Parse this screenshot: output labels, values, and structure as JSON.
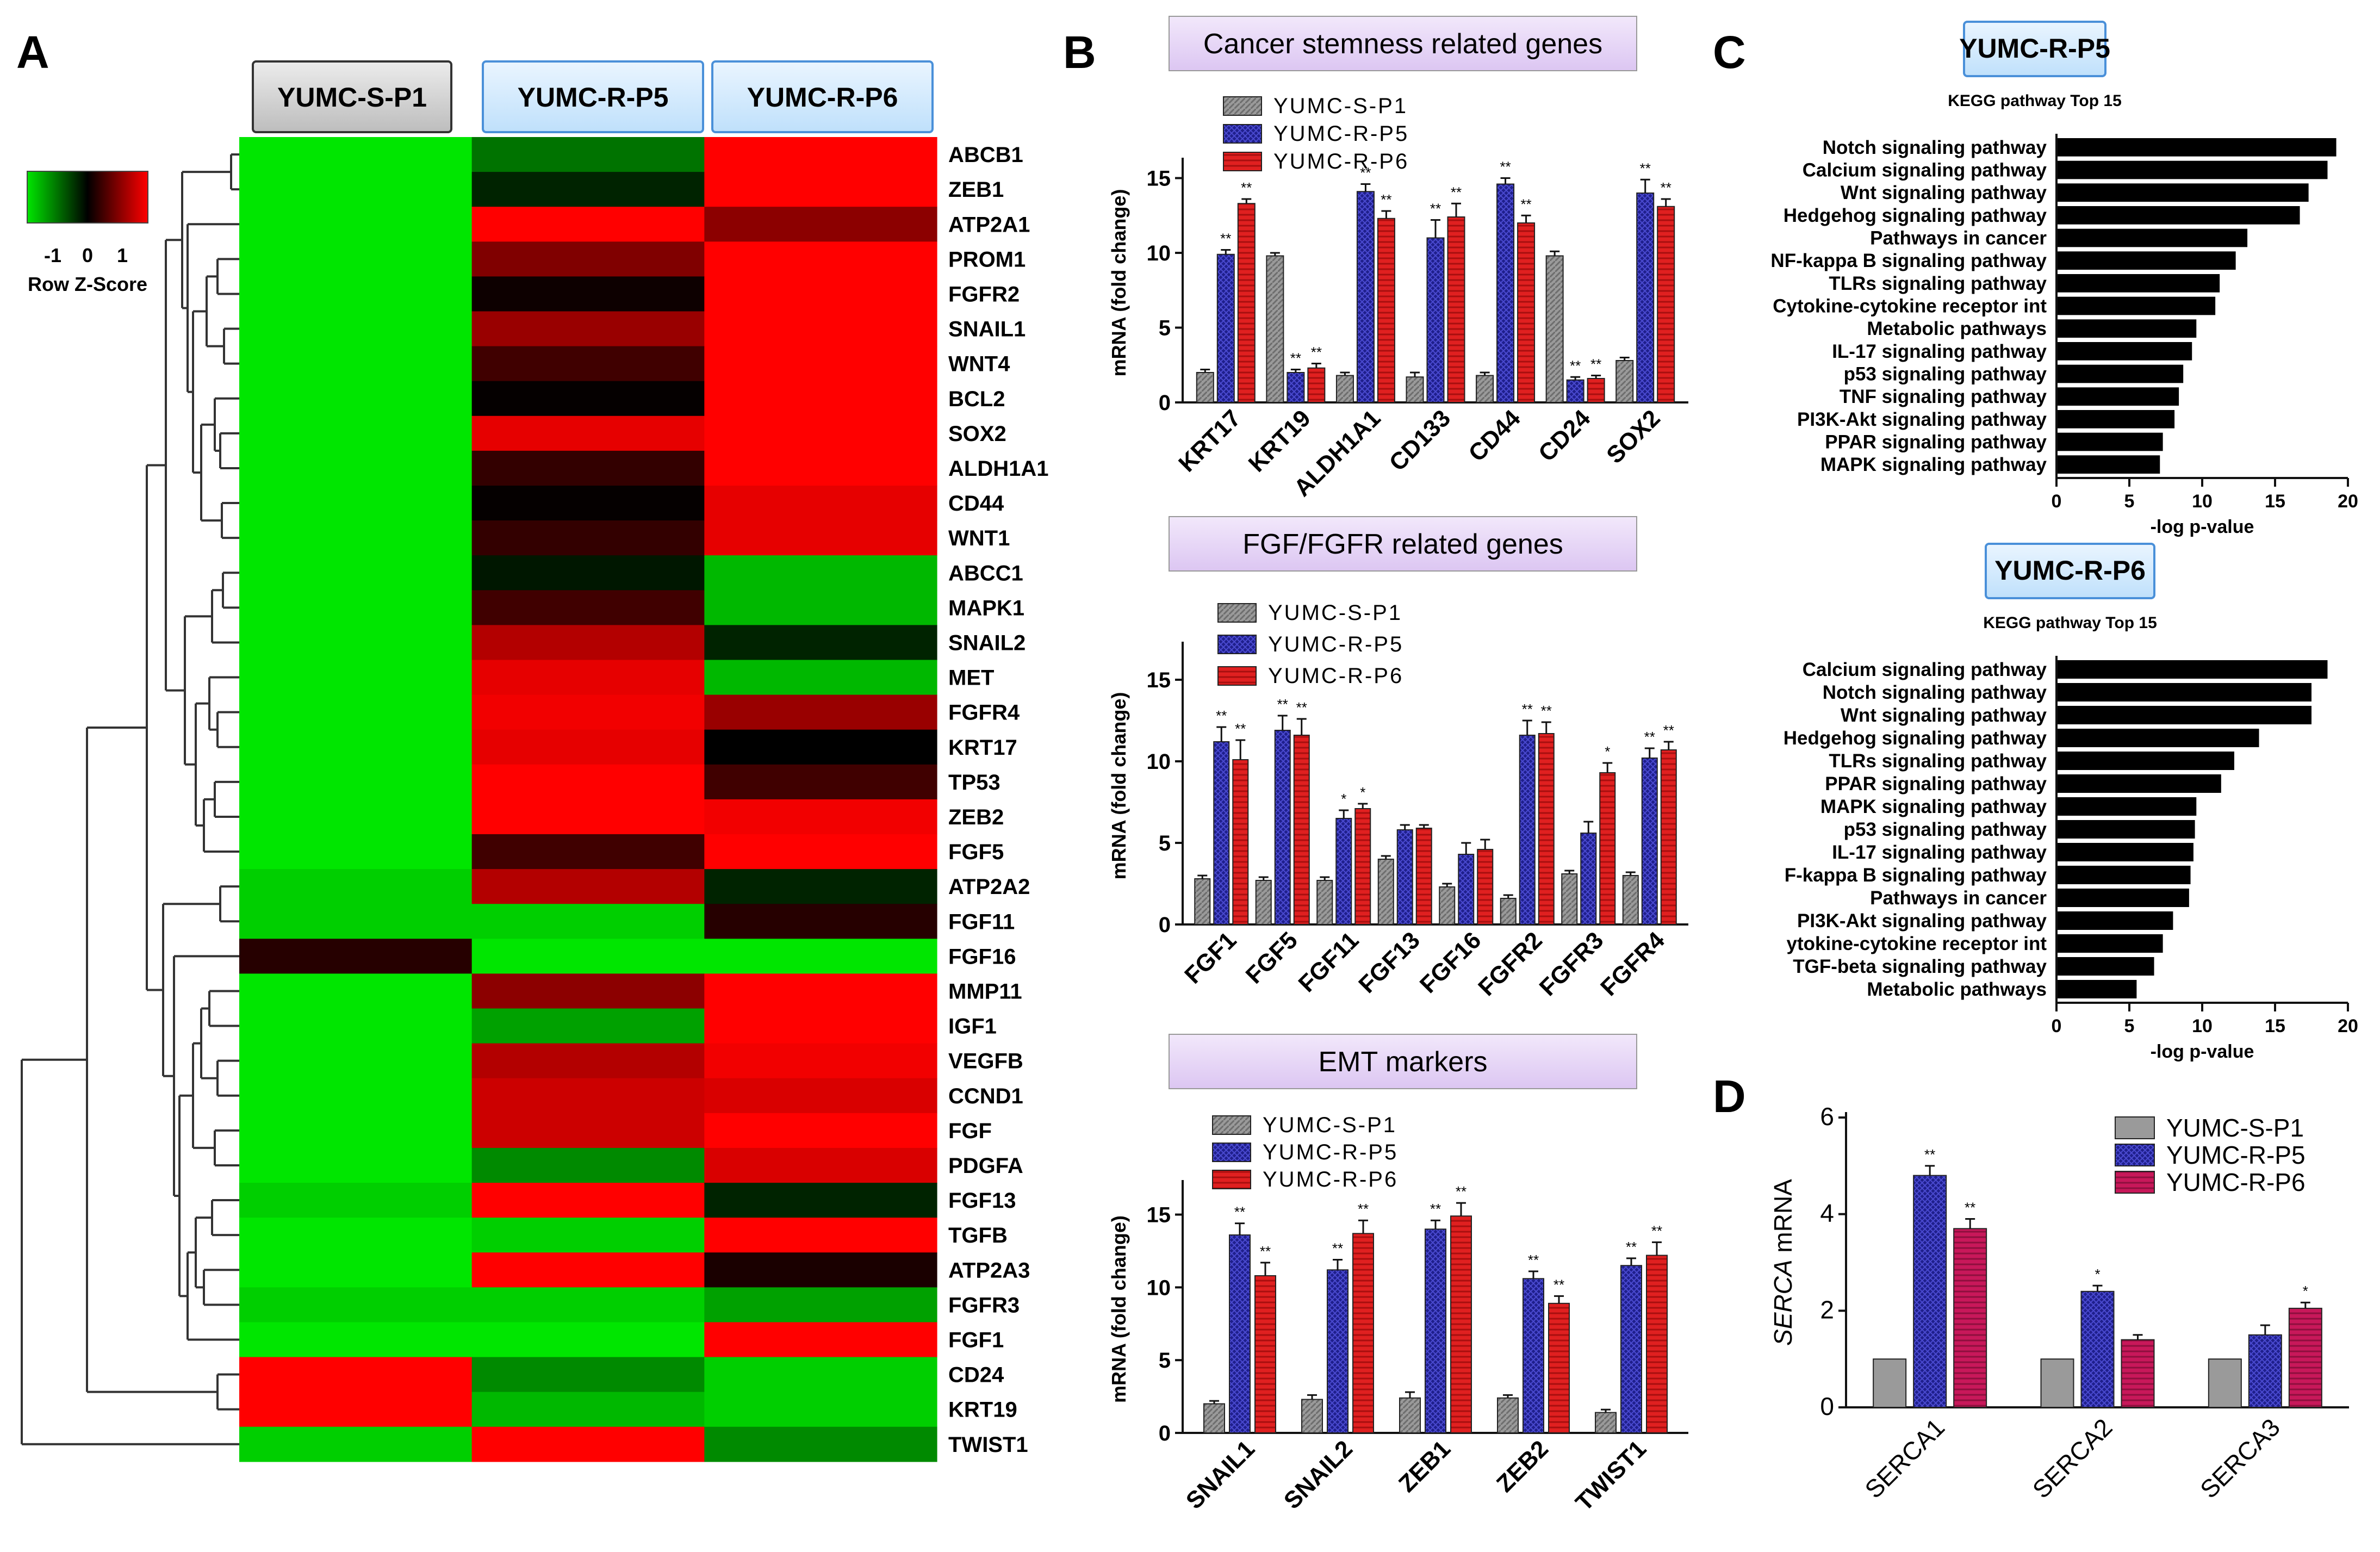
{
  "panel_labels": {
    "A": "A",
    "B": "B",
    "C": "C",
    "D": "D"
  },
  "colors": {
    "s_p1": "#9a9a9a",
    "r_p5": "#1f1f8c",
    "r_p6": "#e02020",
    "r_p6_d": "#c8185a"
  },
  "chart_data": [
    {
      "id": "heatmap",
      "type": "heatmap",
      "columns": [
        "YUMC-S-P1",
        "YUMC-R-P5",
        "YUMC-R-P6"
      ],
      "color_key": {
        "title": "Row Z-Score",
        "ticks": [
          "-1",
          "0",
          "1"
        ]
      },
      "genes": [
        "ABCB1",
        "ZEB1",
        "ATP2A1",
        "PROM1",
        "FGFR2",
        "SNAIL1",
        "WNT4",
        "BCL2",
        "SOX2",
        "ALDH1A1",
        "CD44",
        "WNT1",
        "ABCC1",
        "MAPK1",
        "SNAIL2",
        "MET",
        "FGFR4",
        "KRT17",
        "TP53",
        "ZEB2",
        "FGF5",
        "ATP2A2",
        "FGF11",
        "FGF16",
        "MMP11",
        "IGF1",
        "VEGFB",
        "CCND1",
        "FGF",
        "PDGFA",
        "FGF13",
        "TGFB",
        "ATP2A3",
        "FGFR3",
        "FGF1",
        "CD24",
        "KRT19",
        "TWIST1"
      ],
      "z_scores": [
        [
          -1.0,
          -0.5,
          1.0
        ],
        [
          -1.0,
          -0.15,
          1.0
        ],
        [
          -1.0,
          1.0,
          0.55
        ],
        [
          -1.0,
          0.5,
          1.0
        ],
        [
          -1.0,
          0.05,
          1.0
        ],
        [
          -1.0,
          0.6,
          1.0
        ],
        [
          -1.0,
          0.25,
          1.0
        ],
        [
          -1.0,
          0.02,
          1.0
        ],
        [
          -1.0,
          0.9,
          1.0
        ],
        [
          -1.0,
          0.2,
          1.0
        ],
        [
          -1.0,
          0.02,
          0.9
        ],
        [
          -1.0,
          0.2,
          0.9
        ],
        [
          -1.0,
          -0.1,
          -0.8
        ],
        [
          -1.0,
          0.25,
          -0.8
        ],
        [
          -1.0,
          0.7,
          -0.15
        ],
        [
          -1.0,
          0.9,
          -0.8
        ],
        [
          -1.0,
          0.95,
          0.6
        ],
        [
          -1.0,
          0.9,
          0.0
        ],
        [
          -1.0,
          1.0,
          0.25
        ],
        [
          -1.0,
          1.0,
          0.95
        ],
        [
          -1.0,
          0.25,
          1.0
        ],
        [
          -0.9,
          0.7,
          -0.15
        ],
        [
          -0.9,
          -0.9,
          0.15
        ],
        [
          0.15,
          -1.0,
          -1.0
        ],
        [
          -1.0,
          0.55,
          1.0
        ],
        [
          -1.0,
          -0.7,
          1.0
        ],
        [
          -1.0,
          0.7,
          0.95
        ],
        [
          -1.0,
          0.8,
          0.85
        ],
        [
          -1.0,
          0.8,
          1.0
        ],
        [
          -1.0,
          -0.6,
          0.85
        ],
        [
          -0.9,
          1.0,
          -0.15
        ],
        [
          -1.0,
          -0.9,
          1.0
        ],
        [
          -1.0,
          1.0,
          0.1
        ],
        [
          -0.9,
          -0.9,
          -0.7
        ],
        [
          -1.0,
          -1.0,
          1.0
        ],
        [
          1.0,
          -0.6,
          -0.9
        ],
        [
          1.0,
          -0.8,
          -0.9
        ],
        [
          -0.9,
          1.0,
          -0.6
        ]
      ]
    },
    {
      "id": "stemness",
      "type": "bar",
      "title": "Cancer stemness related genes",
      "ylabel": "mRNA (fold change)",
      "ylim": [
        0,
        16
      ],
      "yticks": [
        "0",
        "5",
        "10",
        "15"
      ],
      "categories": [
        "KRT17",
        "KRT19",
        "ALDH1A1",
        "CD133",
        "CD44",
        "CD24",
        "SOX2"
      ],
      "series": [
        {
          "name": "YUMC-S-P1",
          "values": [
            2.0,
            9.8,
            1.8,
            1.7,
            1.8,
            9.8,
            2.8
          ],
          "err": [
            0.2,
            0.2,
            0.2,
            0.3,
            0.2,
            0.3,
            0.2
          ],
          "sig": [
            "",
            "",
            "",
            "",
            "",
            "",
            ""
          ]
        },
        {
          "name": "YUMC-R-P5",
          "values": [
            9.9,
            2.0,
            14.1,
            11.0,
            14.6,
            1.5,
            14.0
          ],
          "err": [
            0.3,
            0.2,
            0.5,
            1.2,
            0.4,
            0.2,
            0.9
          ],
          "sig": [
            "**",
            "**",
            "**",
            "**",
            "**",
            "**",
            "**"
          ]
        },
        {
          "name": "YUMC-R-P6",
          "values": [
            13.3,
            2.3,
            12.3,
            12.4,
            12.0,
            1.6,
            13.1
          ],
          "err": [
            0.3,
            0.3,
            0.5,
            0.9,
            0.5,
            0.2,
            0.5
          ],
          "sig": [
            "**",
            "**",
            "**",
            "**",
            "**",
            "**",
            "**"
          ]
        }
      ]
    },
    {
      "id": "fgf",
      "type": "bar",
      "title": "FGF/FGFR related genes",
      "ylabel": "mRNA (fold change)",
      "ylim": [
        0,
        17
      ],
      "yticks": [
        "0",
        "5",
        "10",
        "15"
      ],
      "categories": [
        "FGF1",
        "FGF5",
        "FGF11",
        "FGF13",
        "FGF16",
        "FGFR2",
        "FGFR3",
        "FGFR4"
      ],
      "series": [
        {
          "name": "YUMC-S-P1",
          "values": [
            2.8,
            2.7,
            2.7,
            4.0,
            2.3,
            1.6,
            3.1,
            3.0
          ],
          "err": [
            0.2,
            0.2,
            0.2,
            0.2,
            0.2,
            0.2,
            0.2,
            0.2
          ],
          "sig": [
            "",
            "",
            "",
            "",
            "",
            "",
            "",
            ""
          ]
        },
        {
          "name": "YUMC-R-P5",
          "values": [
            11.2,
            11.9,
            6.5,
            5.8,
            4.3,
            11.6,
            5.6,
            10.2
          ],
          "err": [
            0.9,
            0.9,
            0.5,
            0.3,
            0.7,
            0.9,
            0.7,
            0.6
          ],
          "sig": [
            "**",
            "**",
            "*",
            "",
            "",
            "**",
            "",
            "**"
          ]
        },
        {
          "name": "YUMC-R-P6",
          "values": [
            10.1,
            11.6,
            7.1,
            5.9,
            4.6,
            11.7,
            9.3,
            10.7
          ],
          "err": [
            1.2,
            1.0,
            0.3,
            0.2,
            0.6,
            0.7,
            0.6,
            0.5
          ],
          "sig": [
            "**",
            "**",
            "*",
            "",
            "",
            "**",
            "*",
            "**"
          ]
        }
      ]
    },
    {
      "id": "emt",
      "type": "bar",
      "title": "EMT markers",
      "ylabel": "mRNA (fold change)",
      "ylim": [
        0,
        17
      ],
      "yticks": [
        "0",
        "5",
        "10",
        "15"
      ],
      "categories": [
        "SNAIL1",
        "SNAIL2",
        "ZEB1",
        "ZEB2",
        "TWIST1"
      ],
      "series": [
        {
          "name": "YUMC-S-P1",
          "values": [
            2.0,
            2.3,
            2.4,
            2.4,
            1.4
          ],
          "err": [
            0.2,
            0.3,
            0.4,
            0.2,
            0.2
          ],
          "sig": [
            "",
            "",
            "",
            "",
            ""
          ]
        },
        {
          "name": "YUMC-R-P5",
          "values": [
            13.6,
            11.2,
            14.0,
            10.6,
            11.5
          ],
          "err": [
            0.8,
            0.7,
            0.6,
            0.5,
            0.5
          ],
          "sig": [
            "**",
            "**",
            "**",
            "**",
            "**"
          ]
        },
        {
          "name": "YUMC-R-P6",
          "values": [
            10.8,
            13.7,
            14.9,
            8.9,
            12.2
          ],
          "err": [
            0.9,
            0.9,
            0.9,
            0.5,
            0.9
          ],
          "sig": [
            "**",
            "**",
            "**",
            "**",
            "**"
          ]
        }
      ]
    },
    {
      "id": "kegg_p5",
      "type": "bar",
      "orientation": "horizontal",
      "badge": "YUMC-R-P5",
      "title": "KEGG pathway Top 15",
      "xlabel": "-log p-value",
      "xlim": [
        0,
        20
      ],
      "xticks": [
        "0",
        "5",
        "10",
        "15",
        "20"
      ],
      "categories": [
        "Notch signaling pathway",
        "Calcium signaling pathway",
        "Wnt signaling pathway",
        "Hedgehog signaling pathway",
        "Pathways in cancer",
        "NF-kappa B signaling pathway",
        "TLRs signaling pathway",
        "Cytokine-cytokine receptor int",
        "Metabolic pathways",
        "IL-17 signaling pathway",
        "p53 signaling pathway",
        "TNF signaling pathway",
        "PI3K-Akt signaling pathway",
        "PPAR signaling pathway",
        "MAPK signaling pathway"
      ],
      "values": [
        19.2,
        18.6,
        17.3,
        16.7,
        13.1,
        12.3,
        11.2,
        10.9,
        9.6,
        9.3,
        8.7,
        8.4,
        8.1,
        7.3,
        7.1
      ]
    },
    {
      "id": "kegg_p6",
      "type": "bar",
      "orientation": "horizontal",
      "badge": "YUMC-R-P6",
      "title": "KEGG pathway Top 15",
      "xlabel": "-log p-value",
      "xlim": [
        0,
        20
      ],
      "xticks": [
        "0",
        "5",
        "10",
        "15",
        "20"
      ],
      "categories": [
        "Calcium signaling pathway",
        "Notch signaling pathway",
        "Wnt signaling pathway",
        "Hedgehog signaling pathway",
        "TLRs signaling pathway",
        "PPAR signaling pathway",
        "MAPK signaling pathway",
        "p53 signaling pathway",
        "IL-17 signaling pathway",
        "F-kappa B signaling pathway",
        "Pathways in cancer",
        "PI3K-Akt signaling pathway",
        "ytokine-cytokine receptor int",
        "TGF-beta signaling pathway",
        "Metabolic pathways"
      ],
      "values": [
        18.6,
        17.5,
        17.5,
        13.9,
        12.2,
        11.3,
        9.6,
        9.5,
        9.4,
        9.2,
        9.1,
        8.0,
        7.3,
        6.7,
        5.5
      ]
    },
    {
      "id": "serca",
      "type": "bar",
      "ylabel_italic": "SERCA",
      "ylabel_rest": " mRNA",
      "ylim": [
        0,
        6
      ],
      "yticks": [
        "0",
        "2",
        "4",
        "6"
      ],
      "categories": [
        "SERCA1",
        "SERCA2",
        "SERCA3"
      ],
      "series": [
        {
          "name": "YUMC-S-P1",
          "values": [
            1.0,
            1.0,
            1.0
          ],
          "err": [
            0,
            0,
            0
          ],
          "sig": [
            "",
            "",
            ""
          ]
        },
        {
          "name": "YUMC-R-P5",
          "values": [
            4.8,
            2.4,
            1.5
          ],
          "err": [
            0.2,
            0.12,
            0.2
          ],
          "sig": [
            "**",
            "*",
            ""
          ]
        },
        {
          "name": "YUMC-R-P6",
          "values": [
            3.7,
            1.4,
            2.05
          ],
          "err": [
            0.2,
            0.1,
            0.12
          ],
          "sig": [
            "**",
            "",
            "*"
          ]
        }
      ]
    }
  ]
}
